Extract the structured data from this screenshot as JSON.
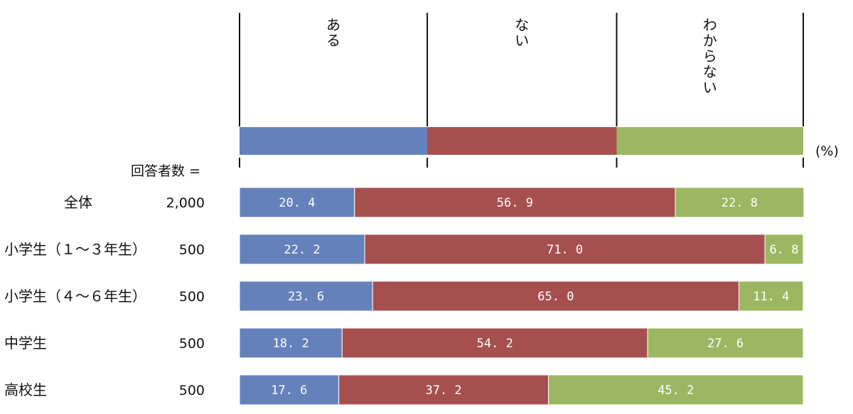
{
  "chart_data": {
    "type": "bar",
    "stacked": true,
    "orientation": "horizontal",
    "unit": "(%)",
    "respondents_label": "回答者数 =",
    "categories": [
      "全体",
      "小学生（１～３年生）",
      "小学生（４～６年生）",
      "中学生",
      "高校生"
    ],
    "respondents": [
      "2,000",
      "500",
      "500",
      "500",
      "500"
    ],
    "series": [
      {
        "name": "ある",
        "color": "#6581bb",
        "values": [
          20.4,
          22.2,
          23.6,
          18.2,
          17.6
        ]
      },
      {
        "name": "ない",
        "color": "#a5504f",
        "values": [
          56.9,
          71.0,
          65.0,
          54.2,
          37.2
        ]
      },
      {
        "name": "わからない",
        "color": "#9cb761",
        "values": [
          22.8,
          6.8,
          11.4,
          27.6,
          45.2
        ]
      }
    ],
    "xlim": [
      0,
      100
    ]
  }
}
